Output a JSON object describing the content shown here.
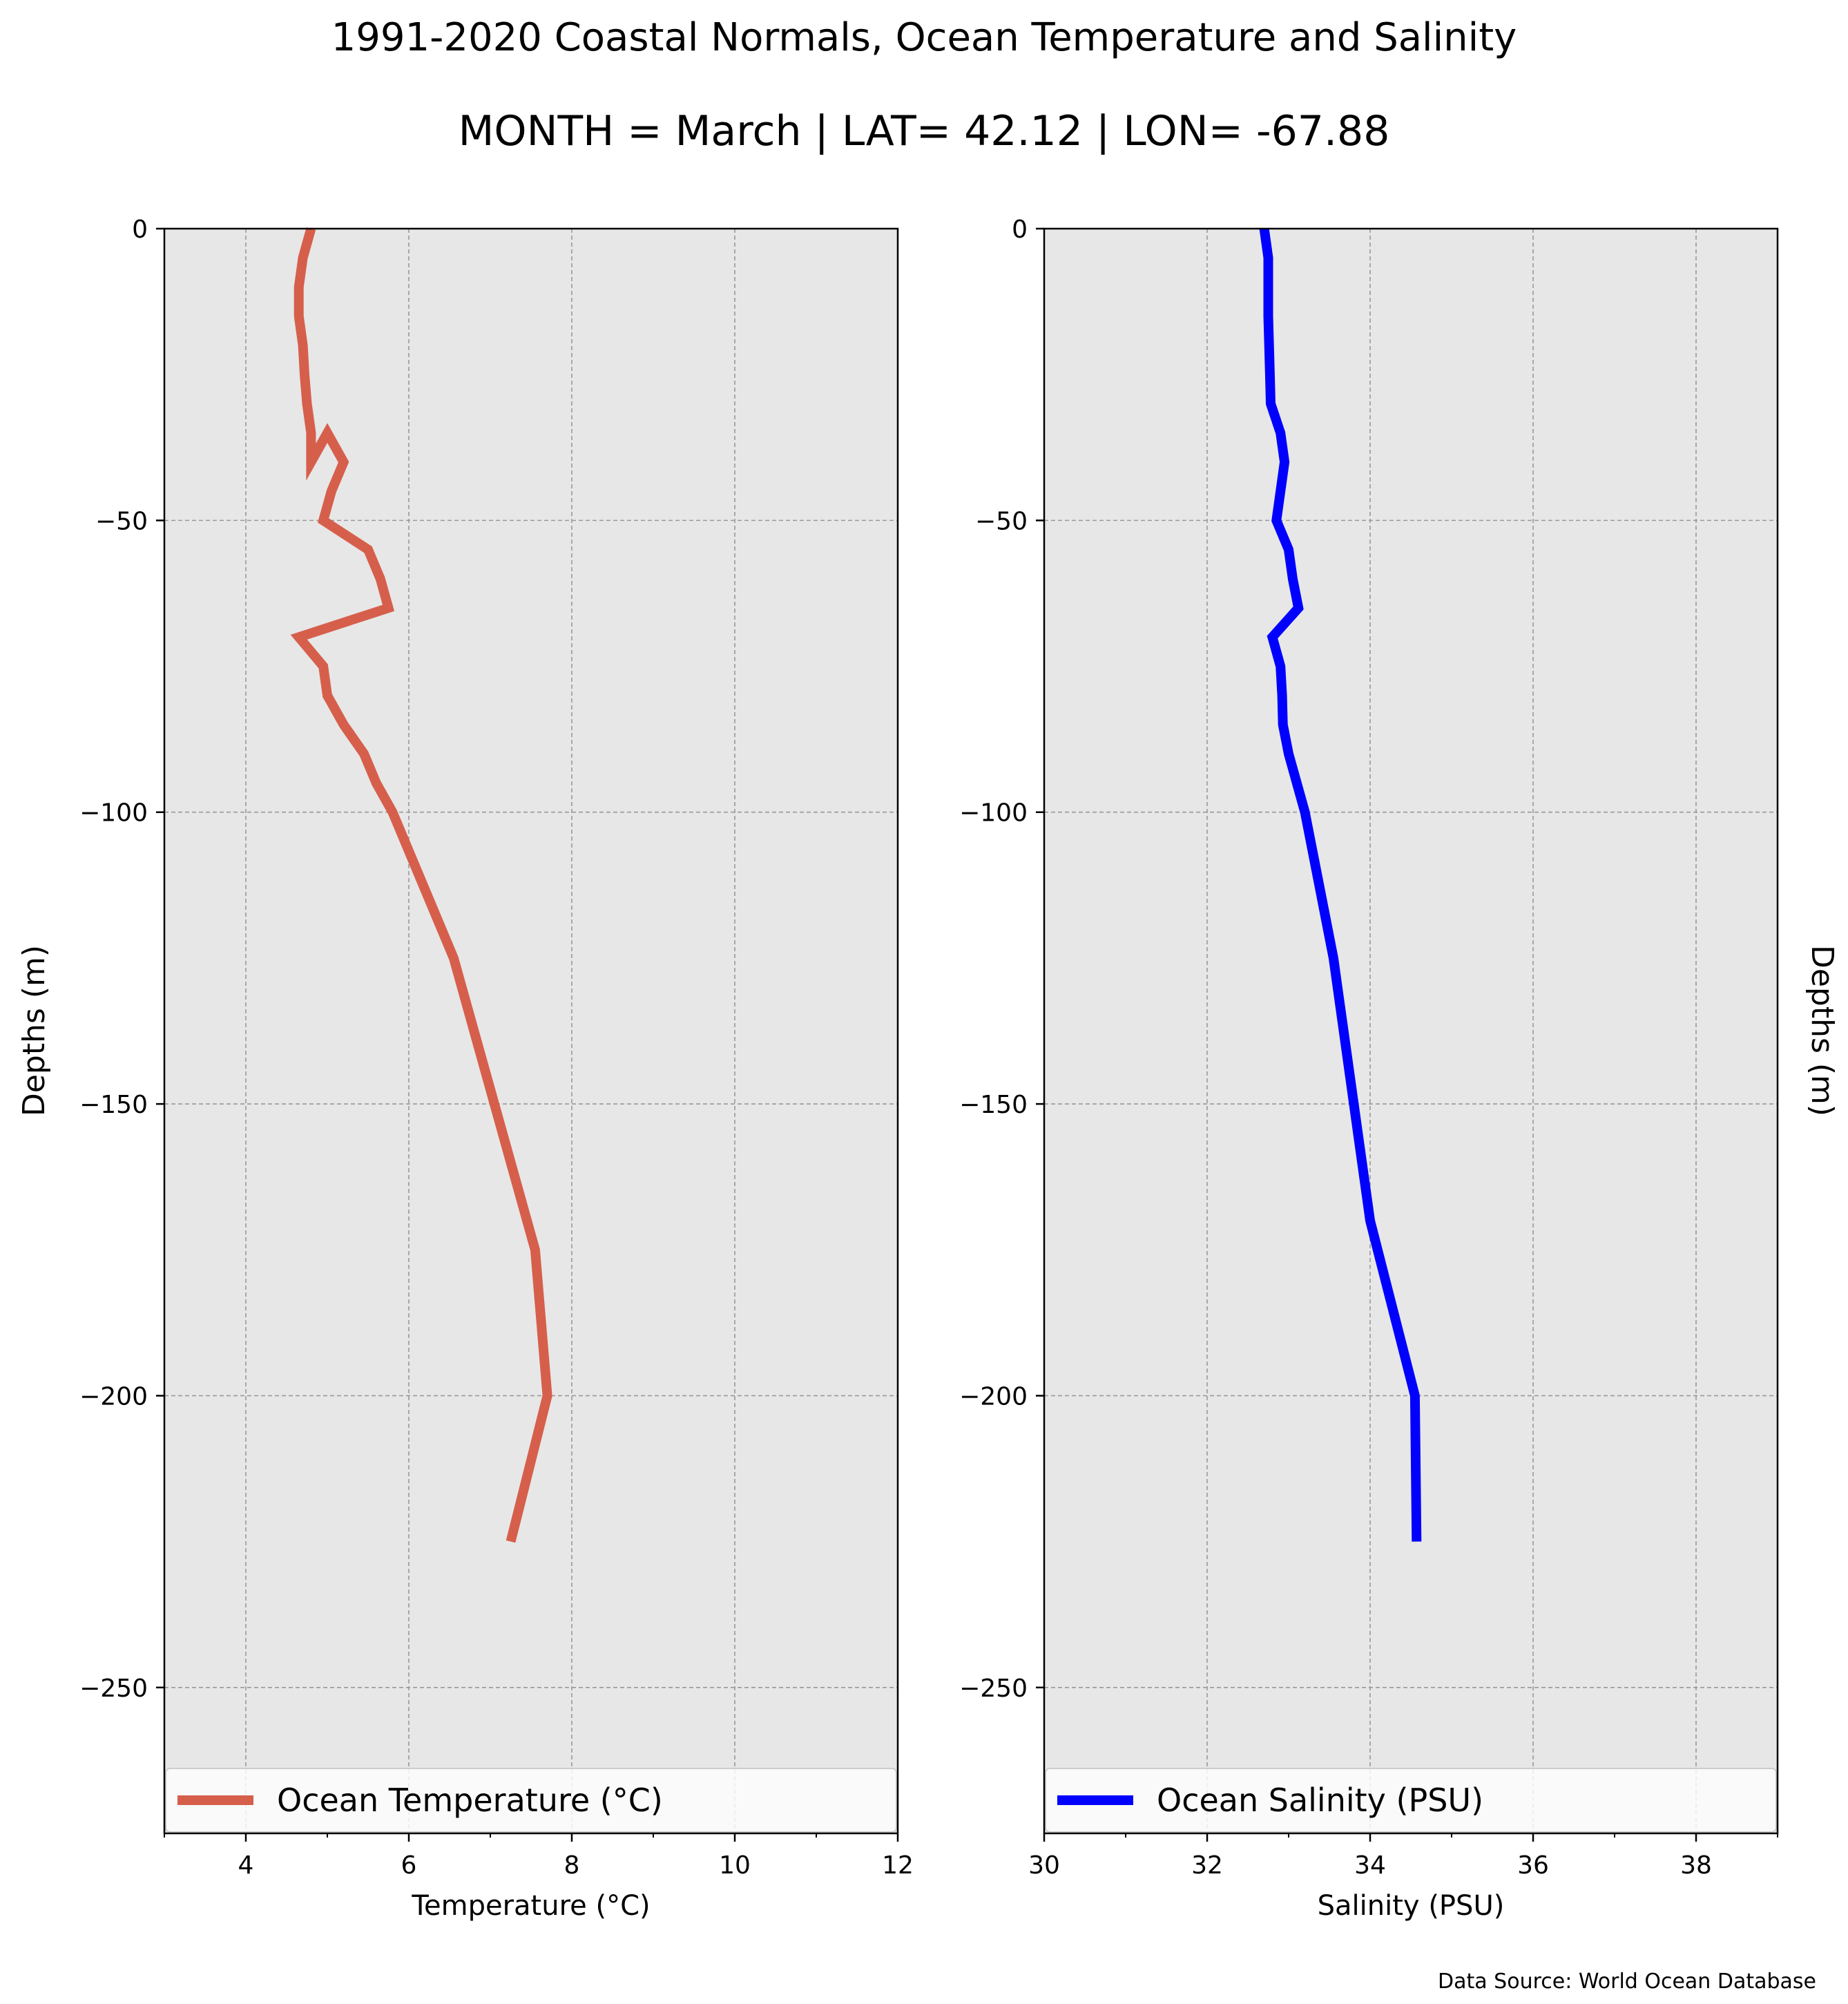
{
  "figure": {
    "title": "1991-2020 Coastal Normals, Ocean Temperature and Salinity",
    "subtitle": "MONTH = March | LAT= 42.12 | LON= -67.88",
    "source_note": "Data Source: World Ocean Database"
  },
  "colors": {
    "temperature_line": "#d65f4c",
    "salinity_line": "#0000ff",
    "plot_background": "#e7e7e7",
    "grid": "#999999"
  },
  "chart_data": [
    {
      "type": "line",
      "xlabel": "Temperature ($^\\circ$C)",
      "xlabel_display": "Temperature (°C)",
      "ylabel": "Depths (m)",
      "xlim": [
        3,
        12
      ],
      "ylim": [
        -275,
        0
      ],
      "xticks": [
        4,
        6,
        8,
        10,
        12
      ],
      "xtick_labels": [
        "4",
        "6",
        "8",
        "10",
        "12"
      ],
      "yticks": [
        0,
        -50,
        -100,
        -150,
        -200,
        -250
      ],
      "ytick_labels": [
        "0",
        "−50",
        "−100",
        "−150",
        "−200",
        "−250"
      ],
      "grid": true,
      "legend_position": "bottom",
      "series": [
        {
          "name": "Ocean Temperature ($^\\circ$C)",
          "name_display": "Ocean Temperature (°C)",
          "x": [
            4.8,
            4.7,
            4.65,
            4.65,
            4.7,
            4.72,
            4.75,
            4.8,
            4.8,
            5.0,
            5.2,
            5.05,
            4.95,
            5.5,
            5.65,
            5.75,
            4.65,
            4.95,
            5.0,
            5.2,
            5.45,
            5.6,
            5.8,
            6.55,
            7.55,
            7.7,
            7.25
          ],
          "y": [
            0,
            -5,
            -10,
            -15,
            -20,
            -25,
            -30,
            -35,
            -40,
            -35,
            -40,
            -45,
            -50,
            -55,
            -60,
            -65,
            -70,
            -75,
            -80,
            -85,
            -90,
            -95,
            -100,
            -125,
            -175,
            -200,
            -225
          ]
        }
      ]
    },
    {
      "type": "line",
      "xlabel": "Salinity (PSU)",
      "ylabel": "Depths (m)",
      "xlim": [
        30,
        39
      ],
      "ylim": [
        -275,
        0
      ],
      "xticks": [
        30,
        32,
        34,
        36,
        38
      ],
      "xtick_labels": [
        "30",
        "32",
        "34",
        "36",
        "38"
      ],
      "yticks": [
        0,
        -50,
        -100,
        -150,
        -200,
        -250
      ],
      "ytick_labels": [
        "0",
        "−50",
        "−100",
        "−150",
        "−200",
        "−250"
      ],
      "grid": true,
      "legend_position": "bottom",
      "series": [
        {
          "name": "Ocean Salinity (PSU)",
          "x": [
            32.7,
            32.75,
            32.75,
            32.75,
            32.76,
            32.77,
            32.78,
            32.9,
            32.95,
            32.85,
            33.0,
            33.05,
            33.12,
            32.8,
            32.9,
            32.92,
            32.93,
            33.0,
            33.1,
            33.2,
            33.55,
            33.8,
            34.0,
            34.55,
            34.57
          ],
          "y": [
            0,
            -5,
            -10,
            -15,
            -20,
            -25,
            -30,
            -35,
            -40,
            -50,
            -55,
            -60,
            -65,
            -70,
            -75,
            -80,
            -85,
            -90,
            -95,
            -100,
            -125,
            -150,
            -170,
            -200,
            -225
          ]
        }
      ]
    }
  ]
}
